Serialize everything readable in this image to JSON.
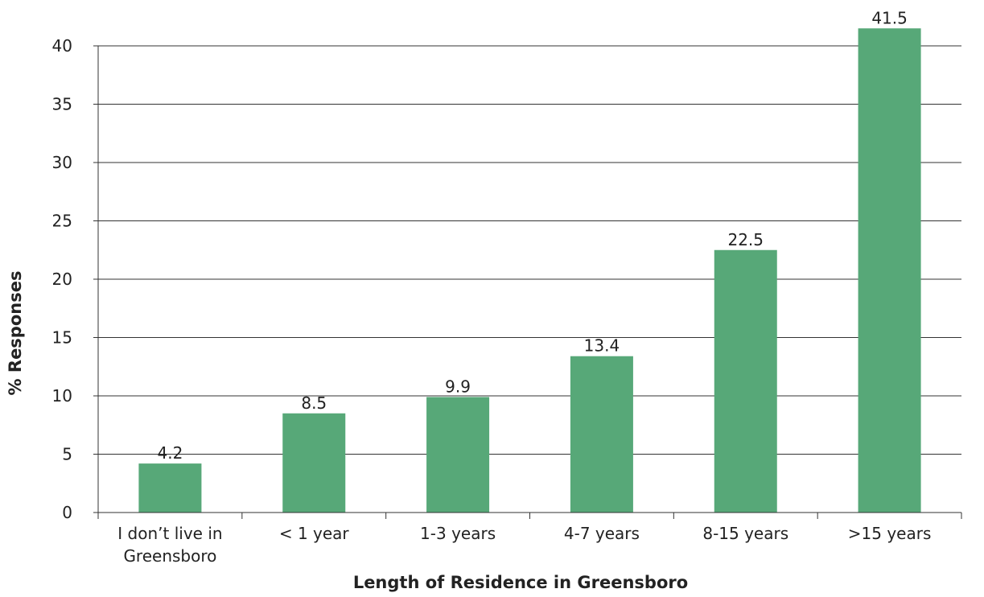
{
  "chart_data": {
    "type": "bar",
    "categories": [
      "I don’t live in Greensboro",
      "< 1 year",
      "1-3 years",
      "4-7 years",
      "8-15 years",
      ">15 years"
    ],
    "category_lines": [
      [
        "I don’t live in",
        "Greensboro"
      ],
      [
        "< 1 year"
      ],
      [
        "1-3 years"
      ],
      [
        "4-7 years"
      ],
      [
        "8-15 years"
      ],
      [
        ">15 years"
      ]
    ],
    "values": [
      4.2,
      8.5,
      9.9,
      13.4,
      22.5,
      41.5
    ],
    "value_labels": [
      "4.2",
      "8.5",
      "9.9",
      "13.4",
      "22.5",
      "41.5"
    ],
    "xlabel": "Length of Residence in Greensboro",
    "ylabel": "% Responses",
    "ylim": [
      0,
      40
    ],
    "yticks": [
      0,
      5,
      10,
      15,
      20,
      25,
      30,
      35,
      40
    ],
    "grid": true,
    "bar_color": "#57a878"
  }
}
